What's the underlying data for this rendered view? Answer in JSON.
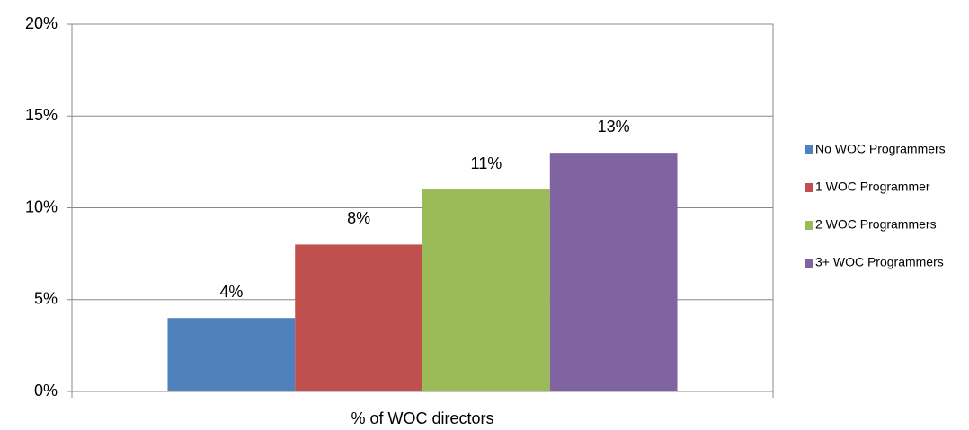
{
  "chart_data": {
    "type": "bar",
    "categories": [
      "% of WOC directors"
    ],
    "series": [
      {
        "name": "No WOC Programmers",
        "color": "#4f81bd",
        "values": [
          4
        ],
        "value_labels": [
          "4%"
        ]
      },
      {
        "name": "1 WOC Programmer",
        "color": "#c0504d",
        "values": [
          8
        ],
        "value_labels": [
          "8%"
        ]
      },
      {
        "name": "2 WOC Programmers",
        "color": "#9bbb59",
        "values": [
          11
        ],
        "value_labels": [
          "11%"
        ]
      },
      {
        "name": "3+ WOC Programmers",
        "color": "#8064a2",
        "values": [
          13
        ],
        "value_labels": [
          "13%"
        ]
      }
    ],
    "ylim": [
      0,
      20
    ],
    "yticks": [
      {
        "value": 0,
        "label": "0%"
      },
      {
        "value": 5,
        "label": "5%"
      },
      {
        "value": 10,
        "label": "10%"
      },
      {
        "value": 15,
        "label": "15%"
      },
      {
        "value": 20,
        "label": "20%"
      }
    ],
    "grid": true,
    "legend": "right"
  }
}
